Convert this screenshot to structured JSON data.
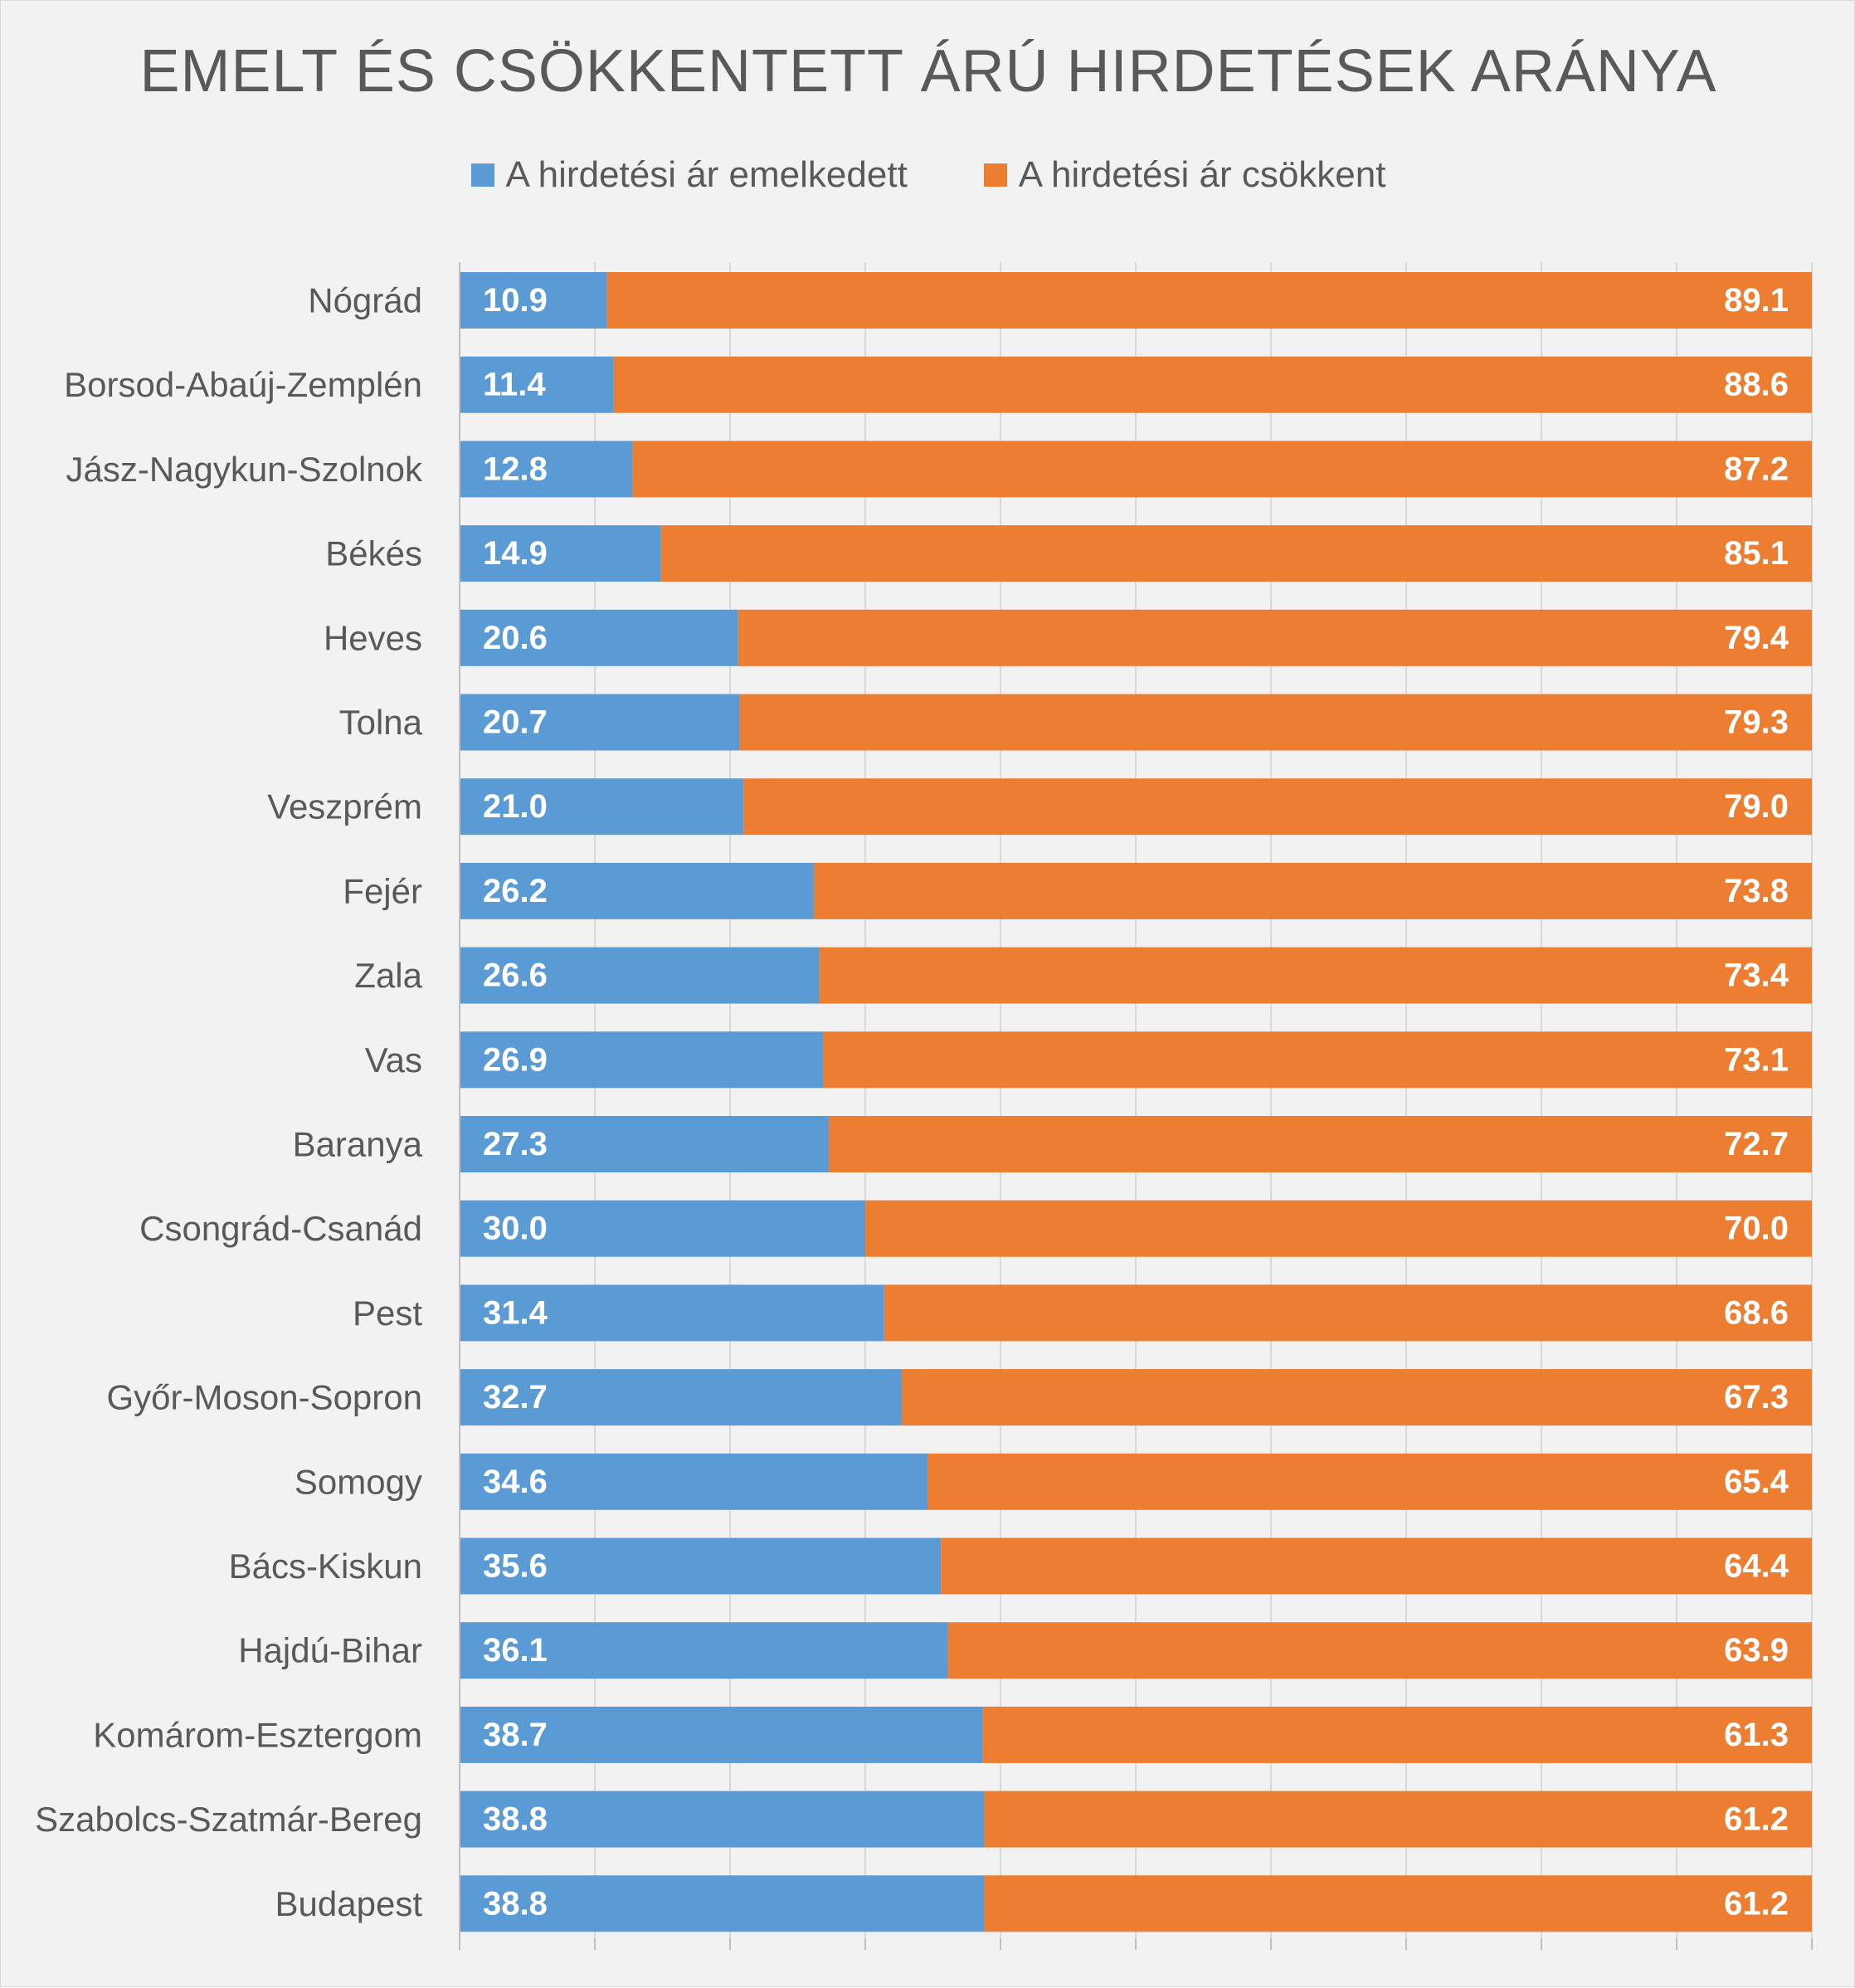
{
  "chart_data": {
    "type": "bar",
    "orientation": "horizontal",
    "stacked": true,
    "title": "EMELT ÉS CSÖKKENTETT ÁRÚ HIRDETÉSEK ARÁNYA",
    "categories": [
      "Nógrád",
      "Borsod-Abaúj-Zemplén",
      "Jász-Nagykun-Szolnok",
      "Békés",
      "Heves",
      "Tolna",
      "Veszprém",
      "Fejér",
      "Zala",
      "Vas",
      "Baranya",
      "Csongrád-Csanád",
      "Pest",
      "Győr-Moson-Sopron",
      "Somogy",
      "Bács-Kiskun",
      "Hajdú-Bihar",
      "Komárom-Esztergom",
      "Szabolcs-Szatmár-Bereg",
      "Budapest"
    ],
    "series": [
      {
        "name": "A hirdetési ár emelkedett",
        "color": "#5b9bd5",
        "values": [
          10.9,
          11.4,
          12.8,
          14.9,
          20.6,
          20.7,
          21.0,
          26.2,
          26.6,
          26.9,
          27.3,
          30.0,
          31.4,
          32.7,
          34.6,
          35.6,
          36.1,
          38.7,
          38.8,
          38.8
        ],
        "labels": [
          "10.9",
          "11.4",
          "12.8",
          "14.9",
          "20.6",
          "20.7",
          "21.0",
          "26.2",
          "26.6",
          "26.9",
          "27.3",
          "30.0",
          "31.4",
          "32.7",
          "34.6",
          "35.6",
          "36.1",
          "38.7",
          "38.8",
          "38.8"
        ]
      },
      {
        "name": "A hirdetési ár csökkent",
        "color": "#ed7d31",
        "values": [
          89.1,
          88.6,
          87.2,
          85.1,
          79.4,
          79.3,
          79.0,
          73.8,
          73.4,
          73.1,
          72.7,
          70.0,
          68.6,
          67.3,
          65.4,
          64.4,
          63.9,
          61.3,
          61.2,
          61.2
        ],
        "labels": [
          "89.1",
          "88.6",
          "87.2",
          "85.1",
          "79.4",
          "79.3",
          "79.0",
          "73.8",
          "73.4",
          "73.1",
          "72.7",
          "70.0",
          "68.6",
          "67.3",
          "65.4",
          "64.4",
          "63.9",
          "61.3",
          "61.2",
          "61.2"
        ]
      }
    ],
    "xlim": [
      0,
      100
    ],
    "grid": true,
    "legend_position": "top"
  }
}
